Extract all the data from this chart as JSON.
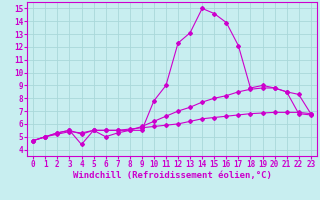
{
  "xlabel": "Windchill (Refroidissement éolien,°C)",
  "ylabel": "",
  "xlim": [
    -0.5,
    23.5
  ],
  "ylim": [
    3.5,
    15.5
  ],
  "yticks": [
    4,
    5,
    6,
    7,
    8,
    9,
    10,
    11,
    12,
    13,
    14,
    15
  ],
  "xticks": [
    0,
    1,
    2,
    3,
    4,
    5,
    6,
    7,
    8,
    9,
    10,
    11,
    12,
    13,
    14,
    15,
    16,
    17,
    18,
    19,
    20,
    21,
    22,
    23
  ],
  "bg_color": "#c8eef0",
  "grid_color": "#aad8da",
  "line_color": "#cc00cc",
  "line1_x": [
    0,
    1,
    2,
    3,
    4,
    5,
    6,
    7,
    8,
    9,
    10,
    11,
    12,
    13,
    14,
    15,
    16,
    17,
    18,
    19,
    20,
    21,
    22,
    23
  ],
  "line1_y": [
    4.7,
    5.0,
    5.3,
    5.5,
    4.4,
    5.5,
    5.0,
    5.3,
    5.5,
    5.5,
    7.8,
    9.0,
    12.3,
    13.1,
    15.0,
    14.6,
    13.9,
    12.1,
    8.8,
    9.0,
    8.8,
    8.5,
    6.8,
    6.7
  ],
  "line2_x": [
    0,
    1,
    2,
    3,
    4,
    5,
    6,
    7,
    8,
    9,
    10,
    11,
    12,
    13,
    14,
    15,
    16,
    17,
    18,
    19,
    20,
    21,
    22,
    23
  ],
  "line2_y": [
    4.7,
    5.0,
    5.3,
    5.5,
    5.2,
    5.5,
    5.5,
    5.5,
    5.5,
    5.8,
    6.2,
    6.6,
    7.0,
    7.3,
    7.7,
    8.0,
    8.2,
    8.5,
    8.7,
    8.8,
    8.8,
    8.5,
    8.3,
    6.8
  ],
  "line3_x": [
    0,
    1,
    2,
    3,
    4,
    5,
    6,
    7,
    8,
    9,
    10,
    11,
    12,
    13,
    14,
    15,
    16,
    17,
    18,
    19,
    20,
    21,
    22,
    23
  ],
  "line3_y": [
    4.7,
    5.0,
    5.2,
    5.4,
    5.3,
    5.5,
    5.5,
    5.5,
    5.6,
    5.7,
    5.8,
    5.9,
    6.0,
    6.2,
    6.4,
    6.5,
    6.6,
    6.7,
    6.8,
    6.85,
    6.9,
    6.9,
    6.9,
    6.8
  ],
  "marker": "D",
  "marker_size": 2.0,
  "line_width": 0.8,
  "tick_fontsize": 5.5,
  "xlabel_fontsize": 6.5
}
